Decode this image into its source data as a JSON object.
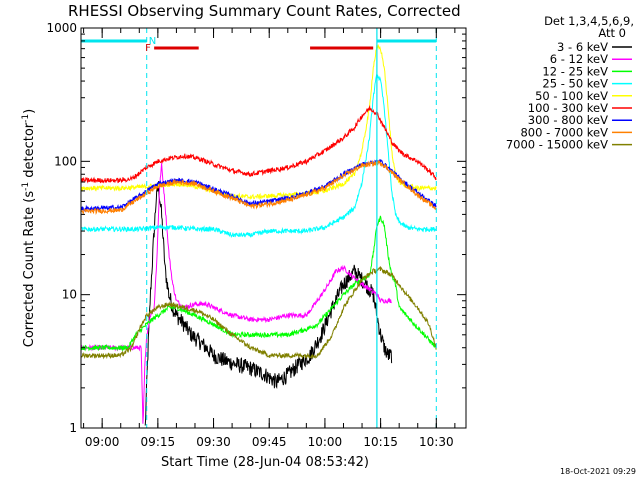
{
  "chart_data": {
    "type": "line",
    "title": "RHESSI Observing Summary Count Rates, Corrected",
    "xlabel": "Start Time (28-Jun-04 08:53:42)",
    "ylabel_main": "Corrected Count Rate (s",
    "ylabel_sup1": "-1",
    "ylabel_mid": " detector",
    "ylabel_sup2": "-1",
    "ylabel_end": ")",
    "yscale": "log",
    "ylim": [
      1,
      1000
    ],
    "y_ticks": [
      {
        "value": 1,
        "label": "1"
      },
      {
        "value": 10,
        "label": "10"
      },
      {
        "value": 100,
        "label": "100"
      },
      {
        "value": 1000,
        "label": "1000"
      }
    ],
    "xlim": [
      -5.7,
      98
    ],
    "x_ticks": [
      {
        "value": 0,
        "label": "09:00"
      },
      {
        "value": 15,
        "label": "09:15"
      },
      {
        "value": 30,
        "label": "09:30"
      },
      {
        "value": 45,
        "label": "09:45"
      },
      {
        "value": 60,
        "label": "10:00"
      },
      {
        "value": 75,
        "label": "10:15"
      },
      {
        "value": 90,
        "label": "10:30"
      }
    ],
    "detector_info": "Det 1,3,4,5,6,9,",
    "attenuator_info": "Att 0",
    "timestamp": "18-Oct-2021 09:29",
    "flags": {
      "night_label": "N",
      "flare_label": "F",
      "night_color": "#00e5ee",
      "flare_color": "#dd0000",
      "night_intervals": [
        [
          -5.7,
          12
        ],
        [
          74,
          90
        ]
      ],
      "flare_intervals": [
        [
          14,
          26
        ],
        [
          56,
          73
        ]
      ],
      "dashed_lines": [
        12,
        90
      ]
    },
    "series": [
      {
        "name": "3 - 6 keV",
        "color": "#000000",
        "x": [
          11.6,
          12.2,
          13,
          14,
          14.6,
          15.2,
          16,
          17,
          18,
          19,
          20,
          22,
          24,
          26,
          28,
          30,
          33,
          36,
          40,
          44,
          47,
          50,
          53,
          56,
          59,
          62,
          65,
          68,
          71,
          73,
          74,
          75,
          76,
          77,
          78
        ],
        "y": [
          1,
          3,
          10,
          30,
          55,
          65,
          40,
          15,
          10,
          8,
          7,
          6,
          5,
          4.5,
          4,
          3.5,
          3.2,
          3,
          2.8,
          2.5,
          2.2,
          2.5,
          3,
          3.5,
          5,
          8,
          12,
          15,
          12,
          10,
          7,
          5,
          4,
          3.5,
          3.5
        ]
      },
      {
        "name": "6 - 12 keV",
        "color": "#ff00ff",
        "x": [
          -5.7,
          6,
          8,
          9.5,
          10.5,
          11,
          11.5,
          12,
          13,
          14,
          14.8,
          15.4,
          16,
          17,
          18,
          19,
          20,
          22,
          25,
          28,
          30,
          35,
          40,
          45,
          50,
          55,
          58,
          61,
          63,
          65,
          67,
          70,
          72,
          74,
          75,
          76,
          78
        ],
        "y": [
          4,
          4,
          4,
          4,
          4,
          1,
          3,
          5,
          7,
          8,
          20,
          60,
          95,
          45,
          20,
          12,
          9,
          8,
          8.5,
          8.5,
          8,
          7,
          6.5,
          6.5,
          7,
          7,
          9,
          12,
          15,
          16,
          14,
          12,
          11,
          10,
          9,
          9,
          9
        ]
      },
      {
        "name": "12 - 25 keV",
        "color": "#00ff00",
        "x": [
          -5.7,
          3,
          5,
          7,
          9,
          12,
          15,
          18,
          20,
          25,
          30,
          35,
          40,
          45,
          50,
          55,
          58,
          62,
          65,
          68,
          70,
          72,
          73,
          74,
          75,
          76,
          77,
          78,
          79,
          80,
          90
        ],
        "y": [
          4,
          4,
          4,
          4,
          5,
          6,
          7,
          8,
          8,
          7,
          6,
          5,
          5,
          5,
          5,
          5.5,
          6,
          8,
          10,
          12,
          13,
          14,
          20,
          33,
          38,
          33,
          20,
          14,
          12,
          8,
          4
        ]
      },
      {
        "name": "25 - 50 keV",
        "color": "#00ffff",
        "x": [
          -5.7,
          5,
          10,
          15,
          20,
          25,
          30,
          35,
          40,
          45,
          50,
          55,
          60,
          65,
          68,
          70,
          72,
          73,
          74,
          75,
          76,
          77,
          78,
          79,
          80,
          82,
          85,
          90
        ],
        "y": [
          31,
          31,
          31,
          32,
          32,
          31,
          31,
          28,
          28,
          30,
          30,
          30,
          32,
          38,
          45,
          70,
          150,
          300,
          450,
          400,
          250,
          120,
          60,
          40,
          35,
          32,
          31,
          31
        ]
      },
      {
        "name": "50 - 100 keV",
        "color": "#ffff00",
        "x": [
          -5.7,
          5,
          10,
          15,
          20,
          25,
          30,
          35,
          40,
          45,
          50,
          55,
          60,
          65,
          68,
          70,
          72,
          73,
          74,
          75,
          76,
          77,
          78,
          79,
          80,
          82,
          85,
          90
        ],
        "y": [
          63,
          63,
          64,
          66,
          68,
          65,
          60,
          55,
          54,
          55,
          56,
          57,
          60,
          68,
          80,
          120,
          250,
          500,
          720,
          700,
          500,
          250,
          120,
          80,
          70,
          65,
          63,
          63
        ]
      },
      {
        "name": "100 - 300 keV",
        "color": "#ff0000",
        "x": [
          -5.7,
          5,
          8,
          12,
          15,
          18,
          22,
          26,
          30,
          35,
          40,
          45,
          50,
          55,
          60,
          65,
          68,
          70,
          72,
          74,
          76,
          78,
          80,
          82,
          85,
          88,
          90
        ],
        "y": [
          72,
          72,
          74,
          90,
          100,
          105,
          110,
          105,
          95,
          85,
          80,
          85,
          90,
          100,
          120,
          150,
          180,
          220,
          250,
          230,
          180,
          140,
          120,
          110,
          100,
          85,
          75
        ]
      },
      {
        "name": "300 - 800 keV",
        "color": "#0000ff",
        "x": [
          -5.7,
          5,
          10,
          15,
          20,
          25,
          30,
          35,
          40,
          45,
          50,
          55,
          60,
          65,
          70,
          75,
          78,
          80,
          85,
          90
        ],
        "y": [
          44,
          45,
          55,
          68,
          72,
          70,
          62,
          55,
          48,
          50,
          53,
          58,
          65,
          80,
          95,
          100,
          85,
          75,
          58,
          46
        ]
      },
      {
        "name": "800 - 7000 keV",
        "color": "#ff8000",
        "x": [
          -5.7,
          5,
          10,
          15,
          20,
          25,
          30,
          35,
          40,
          45,
          50,
          55,
          60,
          65,
          70,
          75,
          78,
          80,
          85,
          90
        ],
        "y": [
          42,
          43,
          53,
          65,
          70,
          68,
          60,
          53,
          46,
          48,
          51,
          56,
          63,
          78,
          93,
          98,
          83,
          73,
          56,
          44
        ]
      },
      {
        "name": "7000 - 15000 keV",
        "color": "#808000",
        "x": [
          -5.7,
          5,
          8,
          10,
          12,
          15,
          18,
          22,
          26,
          30,
          35,
          40,
          45,
          50,
          55,
          58,
          62,
          65,
          70,
          73,
          75,
          78,
          80,
          82,
          85,
          88,
          90
        ],
        "y": [
          3.5,
          3.5,
          4,
          5.5,
          7,
          8,
          8.5,
          8,
          7.5,
          6.5,
          5,
          4,
          3.5,
          3.5,
          3.5,
          3.5,
          5,
          8,
          13,
          15,
          15.5,
          14,
          12,
          10,
          8,
          6,
          4
        ]
      }
    ]
  }
}
